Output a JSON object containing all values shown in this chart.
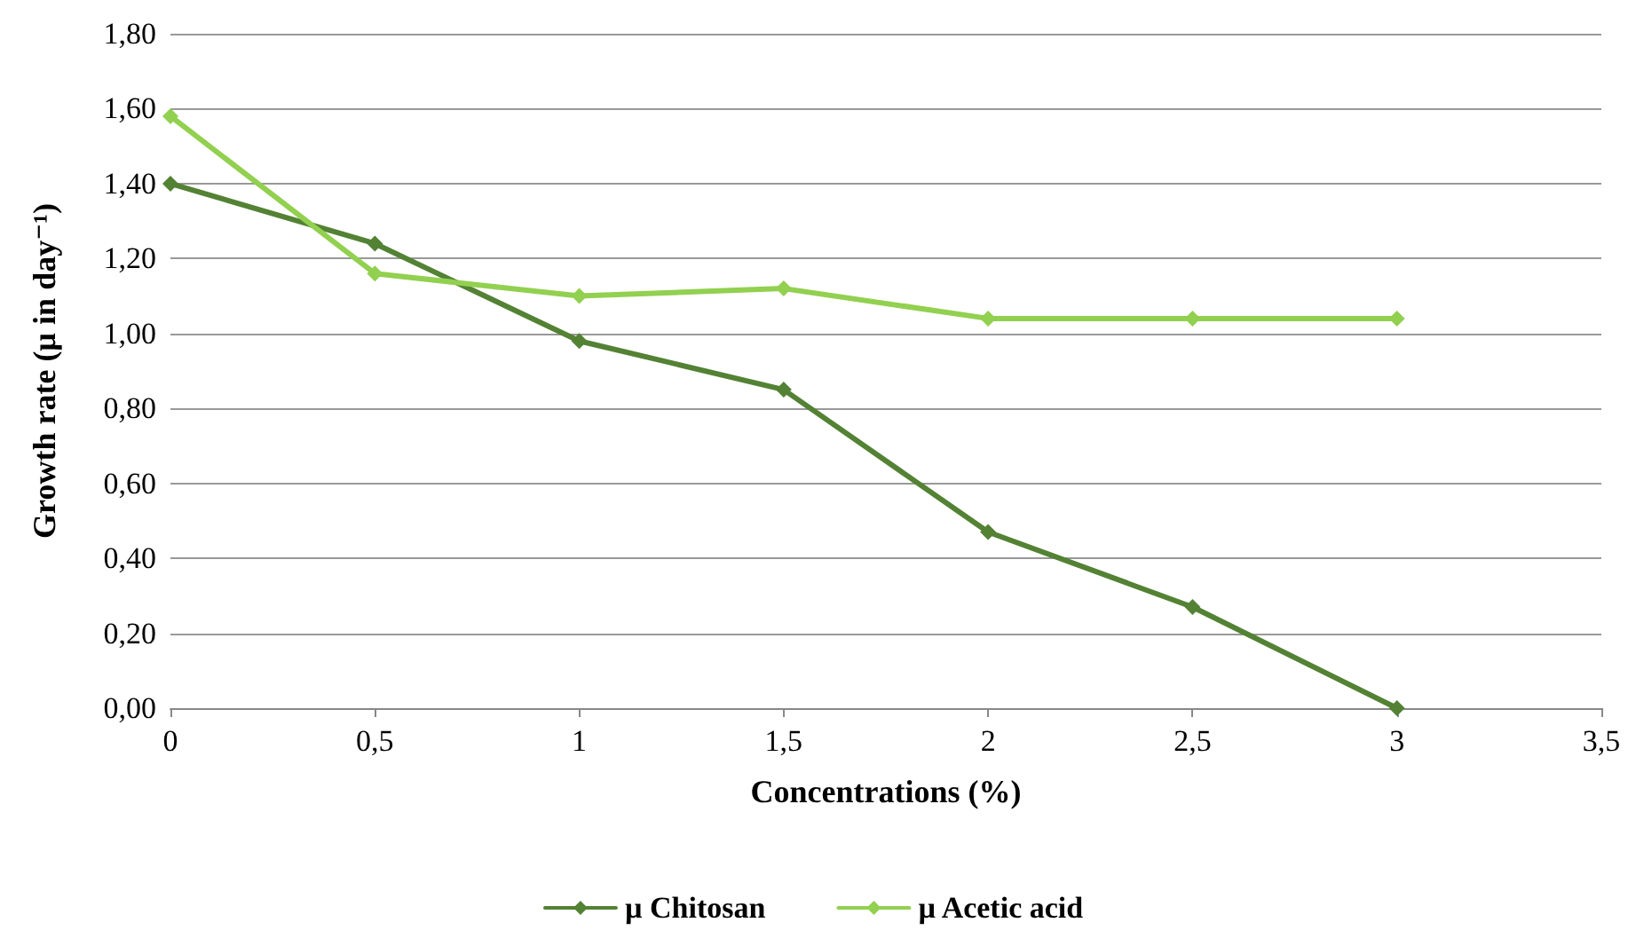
{
  "chart_data": {
    "type": "line",
    "xlabel": "Concentrations (%)",
    "ylabel": "Growth rate (µ in day⁻¹)",
    "x": [
      0,
      0.5,
      1,
      1.5,
      2,
      2.5,
      3
    ],
    "series": [
      {
        "name": "µ Chitosan",
        "color": "#538234",
        "values": [
          1.4,
          1.24,
          0.98,
          0.85,
          0.47,
          0.27,
          0
        ]
      },
      {
        "name": "µ Acetic acid",
        "color": "#92d050",
        "values": [
          1.58,
          1.16,
          1.1,
          1.12,
          1.04,
          1.04,
          1.04
        ]
      }
    ],
    "xlim": [
      0,
      3.5
    ],
    "xticks": [
      0,
      {
        "value": 0.5,
        "label": "0,5"
      },
      1,
      {
        "value": 1.5,
        "label": "1,5"
      },
      2,
      {
        "value": 2.5,
        "label": "2,5"
      },
      3,
      {
        "value": 3.5,
        "label": "3,5"
      }
    ],
    "ylim": [
      0,
      1.8
    ],
    "yticks": [
      {
        "value": 0,
        "label": "0,00"
      },
      {
        "value": 0.2,
        "label": "0,20"
      },
      {
        "value": 0.4,
        "label": "0,40"
      },
      {
        "value": 0.6,
        "label": "0,60"
      },
      {
        "value": 0.8,
        "label": "0,80"
      },
      {
        "value": 1,
        "label": "1,00"
      },
      {
        "value": 1.2,
        "label": "1,20"
      },
      {
        "value": 1.4,
        "label": "1,40"
      },
      {
        "value": 1.6,
        "label": "1,60"
      },
      {
        "value": 1.8,
        "label": "1,80"
      }
    ],
    "grid": "y",
    "legend": "bottom",
    "marker": "diamond",
    "line_style": "solid"
  }
}
